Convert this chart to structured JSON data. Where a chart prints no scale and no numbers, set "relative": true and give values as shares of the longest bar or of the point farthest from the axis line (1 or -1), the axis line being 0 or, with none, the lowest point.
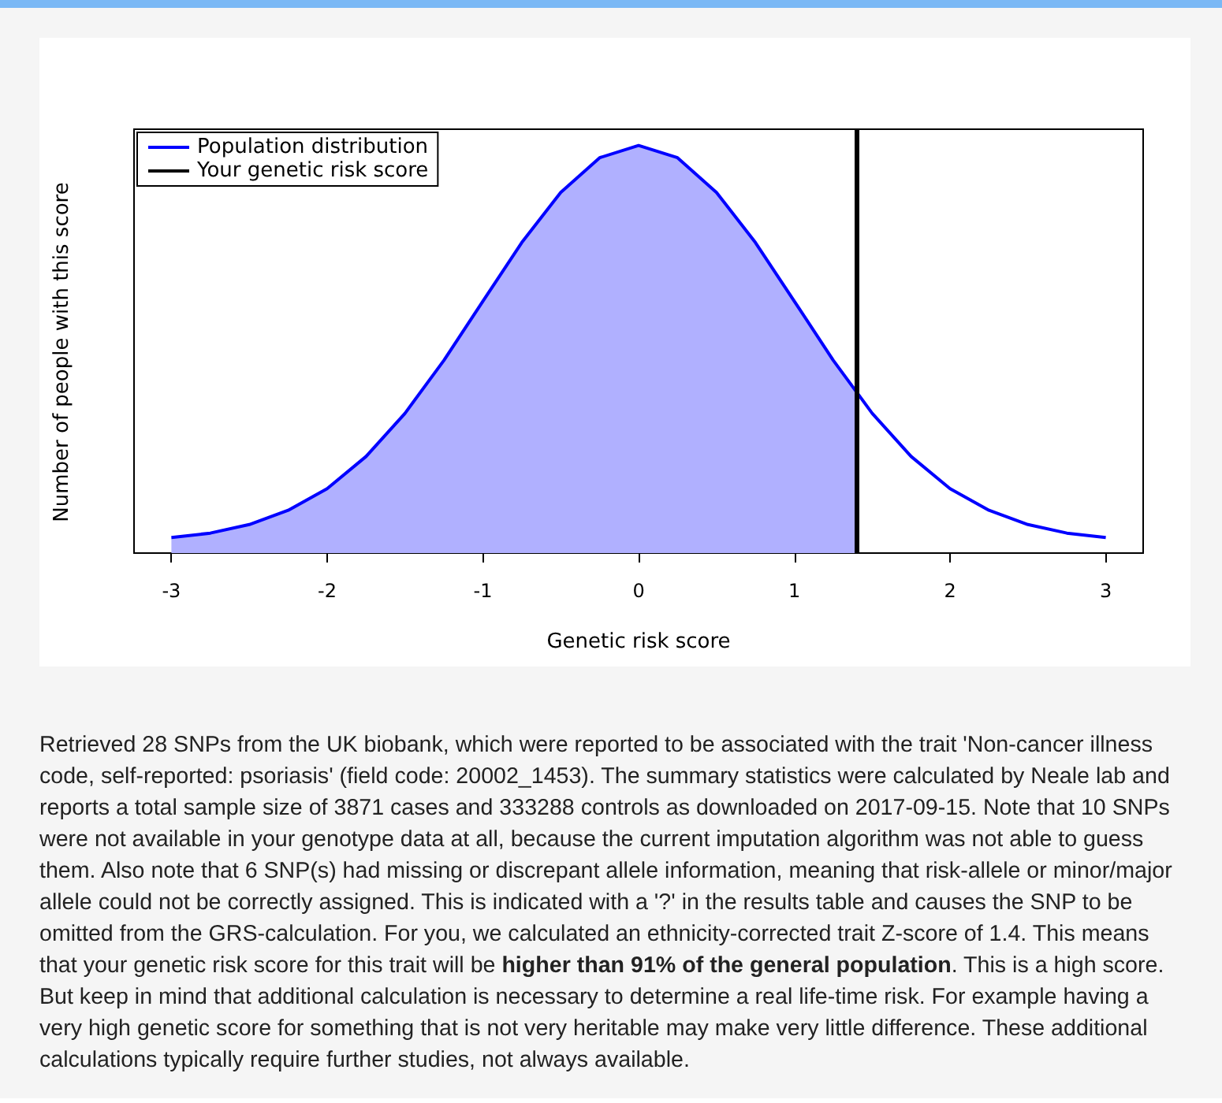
{
  "chart_data": {
    "type": "line",
    "xlabel": "Genetic risk score",
    "ylabel": "Number of people with this score",
    "relative": true,
    "xlim": [
      -3.24,
      3.24
    ],
    "xticks": [
      -3,
      -2,
      -1,
      0,
      1,
      2,
      3
    ],
    "grid": false,
    "legend": "top left",
    "marker": "none",
    "line_style": "solid",
    "series": [
      {
        "type": "area",
        "color": "#b0b0ff",
        "x": [
          -3,
          -2.75,
          -2.5,
          -2.25,
          -2,
          -1.75,
          -1.5,
          -1.25,
          -1,
          -0.75,
          -0.5,
          -0.25,
          0,
          0.25,
          0.5,
          0.75,
          1,
          1.25,
          1.4
        ],
        "values": [
          0.038,
          0.049,
          0.07,
          0.105,
          0.158,
          0.237,
          0.343,
          0.473,
          0.618,
          0.762,
          0.885,
          0.97,
          1,
          0.97,
          0.885,
          0.762,
          0.618,
          0.473,
          0.392
        ]
      },
      {
        "name": "Population distribution",
        "color": "#0000ff",
        "x": [
          -3,
          -2.75,
          -2.5,
          -2.25,
          -2,
          -1.75,
          -1.5,
          -1.25,
          -1,
          -0.75,
          -0.5,
          -0.25,
          0,
          0.25,
          0.5,
          0.75,
          1,
          1.25,
          1.5,
          1.75,
          2,
          2.25,
          2.5,
          2.75,
          3
        ],
        "values": [
          0.038,
          0.049,
          0.07,
          0.105,
          0.158,
          0.237,
          0.343,
          0.473,
          0.618,
          0.762,
          0.885,
          0.97,
          1,
          0.97,
          0.885,
          0.762,
          0.618,
          0.473,
          0.343,
          0.237,
          0.158,
          0.105,
          0.07,
          0.049,
          0.038
        ]
      }
    ],
    "ref_lines": [
      {
        "axis": "x",
        "value": 1.4,
        "label": "Your genetic risk score",
        "color": "#000000"
      }
    ],
    "annotations": [
      "Retrieved 28 SNPs from the UK biobank, which were reported to be associated with the trait 'Non-cancer illness code, self-reported: psoriasis' (field code: 20002_1453). The summary statistics were calculated by Neale lab and reports a total sample size of 3871 cases and 333288 controls as downloaded on 2017-09-15. Note that 10 SNPs were not available in your genotype data at all, because the current imputation algorithm was not able to guess them. Also note that 6 SNP(s) had missing or discrepant allele information, meaning that risk-allele or minor/major allele could not be correctly assigned. This is indicated with a '?' in the results table and causes the SNP to be omitted from the GRS-calculation. For you, we calculated an ethnicity-corrected trait Z-score of 1.4. This means that your genetic risk score for this trait will be ",
      "higher than 91% of the general population",
      ". This is a high score. But keep in mind that additional calculation is necessary to determine a real life-time risk. For example having a very high genetic score for something that is not very heritable may make very little difference. These additional calculations typically require further studies, not always available."
    ]
  }
}
